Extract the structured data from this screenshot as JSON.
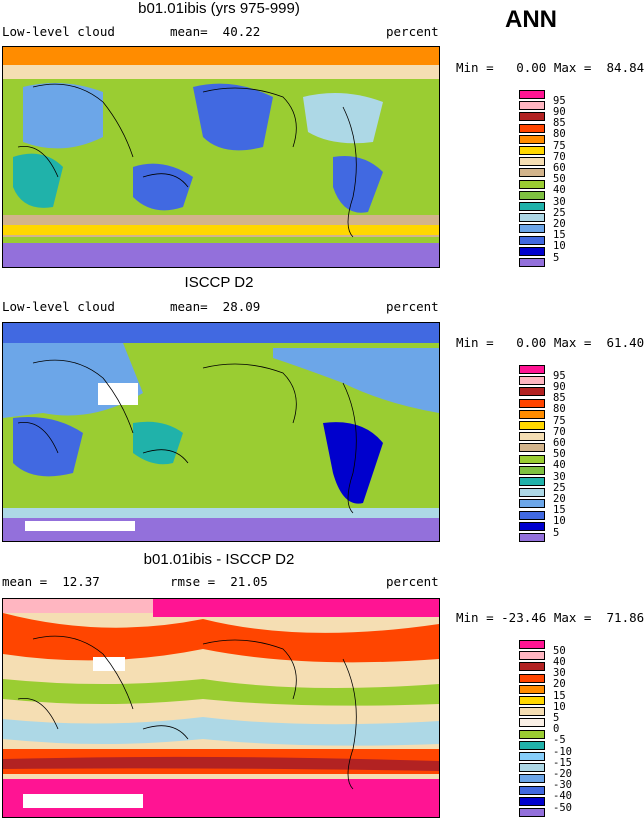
{
  "season_label": "ANN",
  "panels": [
    {
      "title": "b01.01ibis (yrs 975-999)",
      "left_label": "Low-level cloud",
      "mid_label": "mean=  40.22",
      "right_label": "percent",
      "minmax": "Min =   0.00 Max =  84.84",
      "colorbar": {
        "labels": [
          "95",
          "90",
          "85",
          "80",
          "75",
          "70",
          "60",
          "50",
          "40",
          "30",
          "25",
          "20",
          "15",
          "10",
          "5"
        ],
        "colors": [
          "#ff1493",
          "#ffb6c1",
          "#b22222",
          "#ff4500",
          "#ff8c00",
          "#ffd700",
          "#f5deb3",
          "#d2b48c",
          "#9acd32",
          "#7fc141",
          "#20b2aa",
          "#add8e6",
          "#6ca6e8",
          "#4169e1",
          "#0000cd",
          "#9370db"
        ]
      }
    },
    {
      "title": "ISCCP D2",
      "left_label": "Low-level cloud",
      "mid_label": "mean=  28.09",
      "right_label": "percent",
      "minmax": "Min =   0.00 Max =  61.40",
      "colorbar": {
        "labels": [
          "95",
          "90",
          "85",
          "80",
          "75",
          "70",
          "60",
          "50",
          "40",
          "30",
          "25",
          "20",
          "15",
          "10",
          "5"
        ],
        "colors": [
          "#ff1493",
          "#ffb6c1",
          "#b22222",
          "#ff4500",
          "#ff8c00",
          "#ffd700",
          "#f5deb3",
          "#d2b48c",
          "#9acd32",
          "#7fc141",
          "#20b2aa",
          "#add8e6",
          "#6ca6e8",
          "#4169e1",
          "#0000cd",
          "#9370db"
        ]
      }
    },
    {
      "title": "b01.01ibis - ISCCP D2",
      "left_label": "mean =  12.37",
      "mid_label": "rmse =  21.05",
      "right_label": "percent",
      "minmax": "Min = -23.46 Max =  71.86",
      "colorbar": {
        "labels": [
          "50",
          "40",
          "30",
          "20",
          "15",
          "10",
          "5",
          "0",
          "-5",
          "-10",
          "-15",
          "-20",
          "-30",
          "-40",
          "-50"
        ],
        "colors": [
          "#ff1493",
          "#ffb6c1",
          "#b22222",
          "#ff4500",
          "#ff8c00",
          "#ffd700",
          "#f5deb3",
          "#faf0e6",
          "#9acd32",
          "#20b2aa",
          "#87cefa",
          "#add8e6",
          "#6ca6e8",
          "#4169e1",
          "#0000cd",
          "#9370db"
        ]
      }
    }
  ]
}
